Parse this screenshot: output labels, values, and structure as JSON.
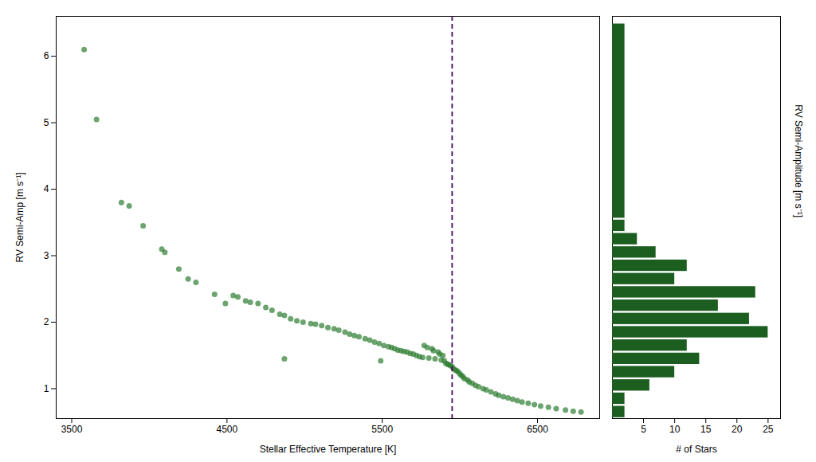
{
  "chart_data": [
    {
      "type": "scatter",
      "x": [
        3580,
        3660,
        3820,
        3870,
        3960,
        4080,
        4100,
        4190,
        4250,
        4300,
        4420,
        4490,
        4540,
        4570,
        4620,
        4650,
        4700,
        4750,
        4790,
        4840,
        4870,
        4910,
        4950,
        4990,
        5040,
        5070,
        5110,
        5150,
        5190,
        5220,
        5260,
        5290,
        5320,
        5350,
        5390,
        5420,
        5450,
        5480,
        5510,
        5540,
        5560,
        5580,
        5600,
        5620,
        5640,
        5660,
        5680,
        5700,
        5720,
        5740,
        5760,
        5770,
        5790,
        5800,
        5820,
        5830,
        5840,
        5860,
        5870,
        5880,
        5890,
        5900,
        5910,
        5920,
        5930,
        5940,
        5950,
        5960,
        5970,
        5980,
        5990,
        6000,
        6010,
        6020,
        6030,
        6050,
        6060,
        6080,
        6100,
        6120,
        6150,
        6170,
        6200,
        6230,
        6250,
        6280,
        6310,
        6340,
        6370,
        6400,
        6440,
        6480,
        6520,
        6570,
        6620,
        6680,
        6730,
        6780,
        4870,
        5490
      ],
      "values": [
        6.1,
        5.05,
        3.8,
        3.75,
        3.45,
        3.1,
        3.05,
        2.8,
        2.65,
        2.6,
        2.42,
        2.28,
        2.4,
        2.38,
        2.32,
        2.3,
        2.28,
        2.22,
        2.18,
        2.12,
        2.1,
        2.05,
        2.02,
        2.0,
        1.98,
        1.97,
        1.95,
        1.92,
        1.9,
        1.88,
        1.85,
        1.82,
        1.8,
        1.78,
        1.75,
        1.73,
        1.7,
        1.68,
        1.65,
        1.63,
        1.62,
        1.6,
        1.58,
        1.57,
        1.56,
        1.55,
        1.53,
        1.52,
        1.5,
        1.48,
        1.47,
        1.65,
        1.62,
        1.46,
        1.6,
        1.57,
        1.45,
        1.55,
        1.52,
        1.43,
        1.5,
        1.42,
        1.38,
        1.37,
        1.36,
        1.35,
        1.33,
        1.3,
        1.28,
        1.27,
        1.25,
        1.22,
        1.2,
        1.18,
        1.15,
        1.13,
        1.1,
        1.08,
        1.05,
        1.03,
        1.0,
        0.98,
        0.95,
        0.92,
        0.9,
        0.88,
        0.86,
        0.84,
        0.82,
        0.8,
        0.78,
        0.76,
        0.74,
        0.72,
        0.7,
        0.68,
        0.66,
        0.65,
        1.45,
        1.42
      ],
      "color": "#2e7d32",
      "xlim": [
        3400,
        6900
      ],
      "ylim": [
        0.55,
        6.6
      ],
      "xticks": [
        3500,
        4500,
        5500,
        6500
      ],
      "yticks": [
        1,
        2,
        3,
        4,
        5,
        6
      ],
      "xlabel": "Stellar Effective Temperature [K]",
      "ylabel": "RV Semi-Amp [m s⁻¹]",
      "vline": {
        "x": 5950,
        "color": "#4a0a5a",
        "line_style": "dashed"
      }
    },
    {
      "type": "histogram",
      "orientation": "horizontal",
      "bins": [
        0.55,
        0.75,
        0.95,
        1.15,
        1.35,
        1.55,
        1.75,
        1.95,
        2.15,
        2.35,
        2.55,
        2.75,
        2.95,
        3.15,
        3.35,
        3.55,
        6.5
      ],
      "values": [
        2,
        2,
        6,
        10,
        14,
        12,
        25,
        22,
        17,
        23,
        10,
        12,
        7,
        4,
        2,
        2
      ],
      "color": "#1b5e20",
      "xlim": [
        0,
        27
      ],
      "xticks": [
        5,
        10,
        15,
        20,
        25
      ],
      "ylim": [
        0.55,
        6.6
      ],
      "xlabel": "# of Stars",
      "ylabel": "RV Semi-Amplitude [m s⁻¹]",
      "tick_labels": "x"
    }
  ]
}
